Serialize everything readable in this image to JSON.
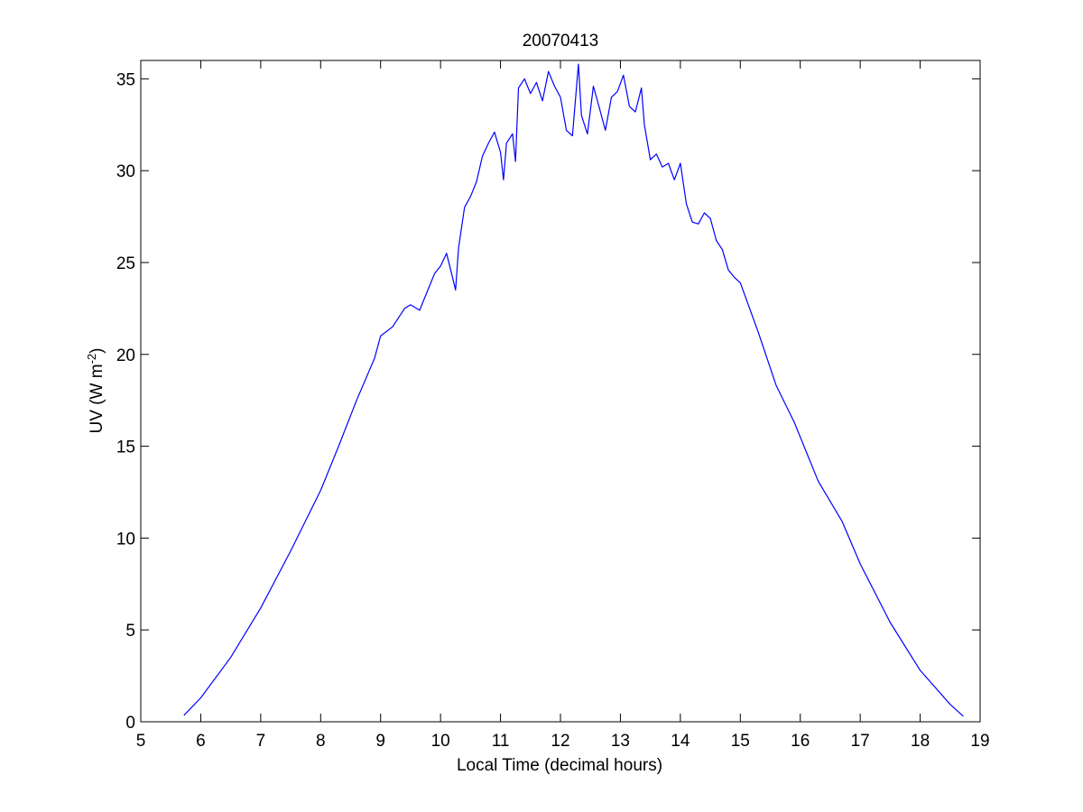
{
  "chart_data": {
    "type": "line",
    "title": "20070413",
    "xlabel": "Local Time (decimal hours)",
    "ylabel": {
      "text": "UV (W m",
      "superscript": "-2",
      "suffix": ")"
    },
    "xlim": [
      5,
      19
    ],
    "ylim": [
      0,
      36
    ],
    "xticks": [
      5,
      6,
      7,
      8,
      9,
      10,
      11,
      12,
      13,
      14,
      15,
      16,
      17,
      18,
      19
    ],
    "yticks": [
      0,
      5,
      10,
      15,
      20,
      25,
      30,
      35
    ],
    "grid": false,
    "box": true,
    "series": [
      {
        "color": "#0000ff",
        "x": [
          5.72,
          6.0,
          6.5,
          7.0,
          7.5,
          8.0,
          8.3,
          8.6,
          8.9,
          9.0,
          9.2,
          9.4,
          9.5,
          9.65,
          9.8,
          9.9,
          10.0,
          10.1,
          10.2,
          10.25,
          10.3,
          10.4,
          10.5,
          10.6,
          10.7,
          10.8,
          10.9,
          11.0,
          11.05,
          11.1,
          11.2,
          11.25,
          11.3,
          11.4,
          11.5,
          11.6,
          11.7,
          11.8,
          11.9,
          12.0,
          12.1,
          12.2,
          12.3,
          12.35,
          12.45,
          12.55,
          12.65,
          12.75,
          12.85,
          12.95,
          13.05,
          13.15,
          13.25,
          13.35,
          13.4,
          13.5,
          13.6,
          13.7,
          13.8,
          13.9,
          14.0,
          14.1,
          14.2,
          14.3,
          14.4,
          14.5,
          14.6,
          14.7,
          14.8,
          14.9,
          15.0,
          15.3,
          15.6,
          15.9,
          16.3,
          16.7,
          17.0,
          17.5,
          18.0,
          18.5,
          18.72
        ],
        "y": [
          0.35,
          1.3,
          3.5,
          6.2,
          9.3,
          12.6,
          15.0,
          17.5,
          19.8,
          21.0,
          21.5,
          22.5,
          22.7,
          22.4,
          23.6,
          24.4,
          24.8,
          25.5,
          24.2,
          23.5,
          25.8,
          28.0,
          28.6,
          29.4,
          30.8,
          31.5,
          32.1,
          31.0,
          29.5,
          31.5,
          32.0,
          30.5,
          34.5,
          35.0,
          34.2,
          34.8,
          33.8,
          35.4,
          34.6,
          34.0,
          32.2,
          31.9,
          35.8,
          33.0,
          32.0,
          34.6,
          33.4,
          32.2,
          34.0,
          34.3,
          35.2,
          33.5,
          33.2,
          34.5,
          32.5,
          30.6,
          30.9,
          30.2,
          30.4,
          29.5,
          30.4,
          28.2,
          27.2,
          27.1,
          27.7,
          27.4,
          26.2,
          25.7,
          24.6,
          24.2,
          23.9,
          21.2,
          18.3,
          16.3,
          13.1,
          10.9,
          8.6,
          5.4,
          2.8,
          0.95,
          0.3
        ]
      }
    ]
  }
}
